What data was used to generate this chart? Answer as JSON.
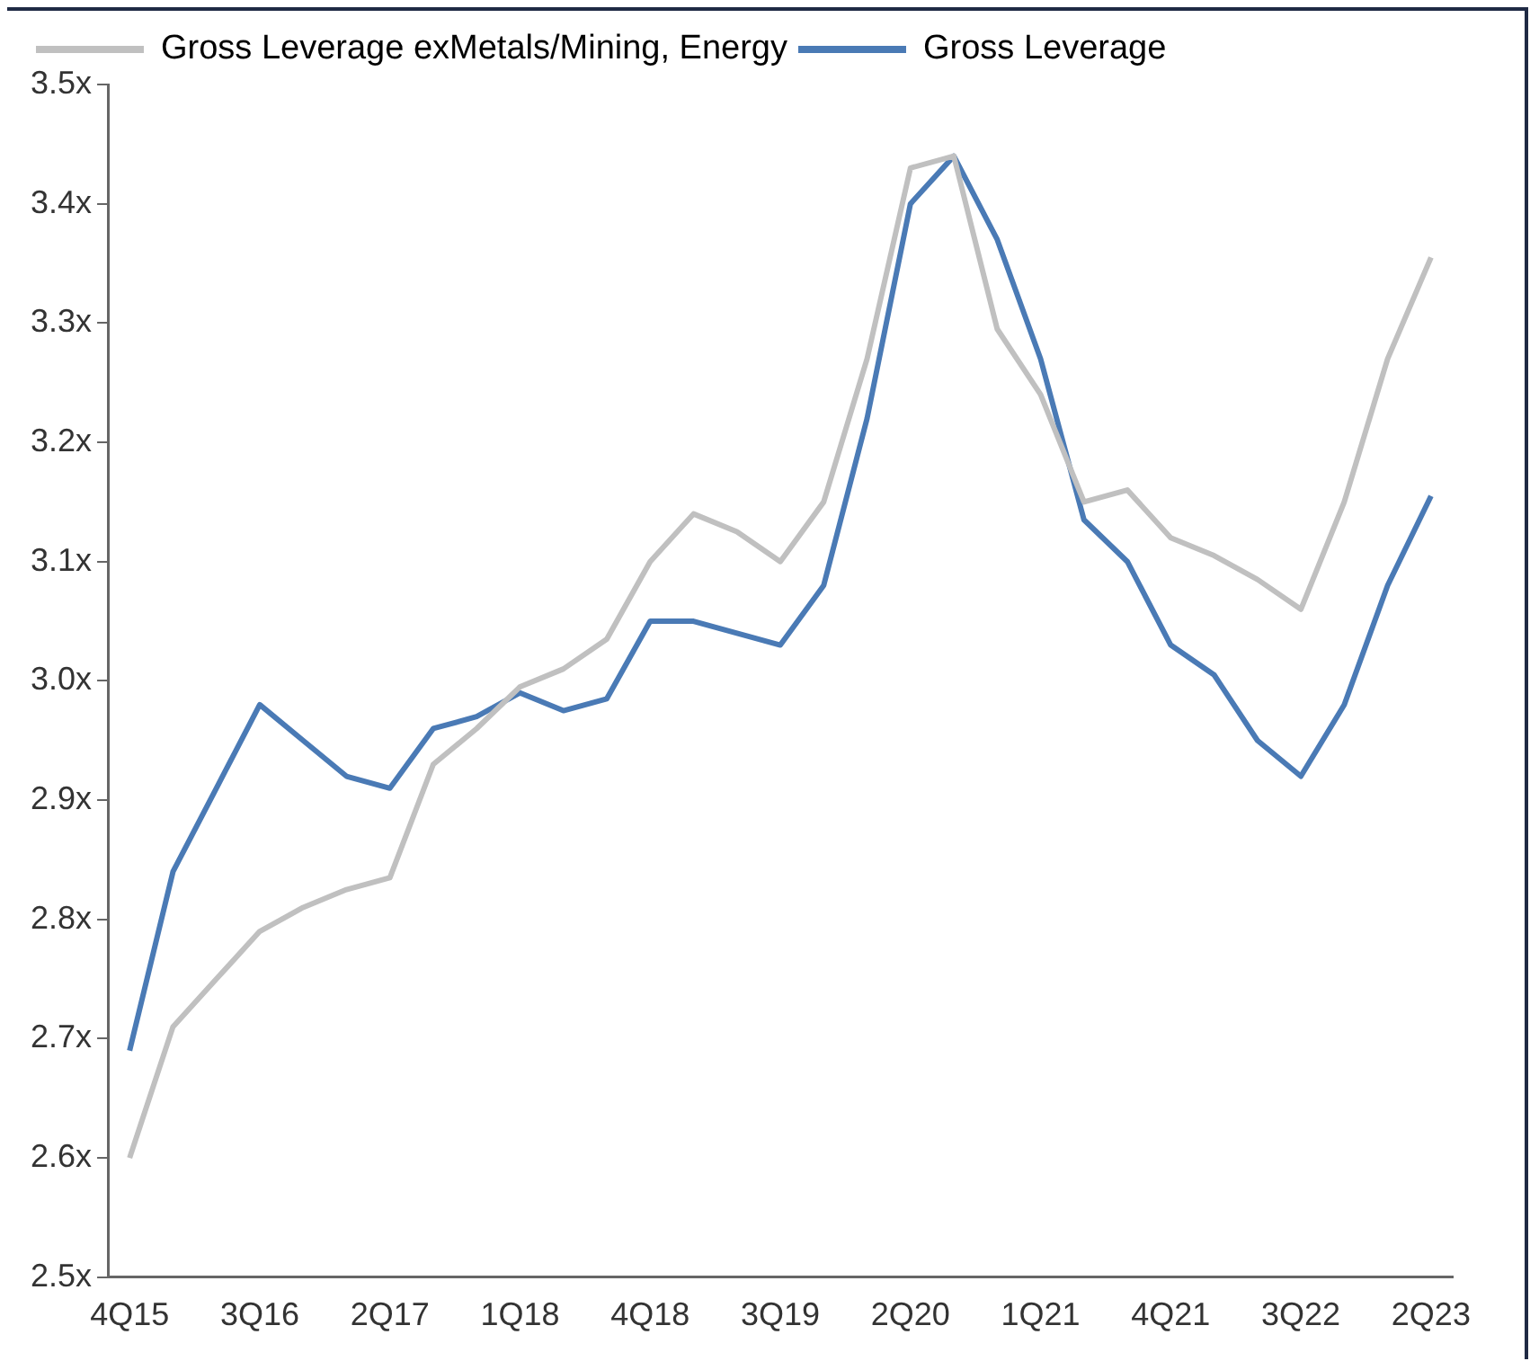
{
  "chart_data": {
    "type": "line",
    "categories": [
      "4Q15",
      null,
      null,
      "3Q16",
      null,
      null,
      "2Q17",
      null,
      null,
      "1Q18",
      null,
      null,
      "4Q18",
      null,
      null,
      "3Q19",
      null,
      null,
      "2Q20",
      null,
      null,
      "1Q21",
      null,
      null,
      "4Q21",
      null,
      null,
      "3Q22",
      null,
      null,
      "2Q23"
    ],
    "series": [
      {
        "name": "Gross Leverage exMetals/Mining, Energy",
        "color": "#c0c0c0",
        "values": [
          2.6,
          2.71,
          2.75,
          2.79,
          2.81,
          2.825,
          2.835,
          2.93,
          2.96,
          2.995,
          3.01,
          3.035,
          3.1,
          3.14,
          3.125,
          3.1,
          3.15,
          3.27,
          3.43,
          3.44,
          3.295,
          3.24,
          3.15,
          3.16,
          3.12,
          3.105,
          3.085,
          3.06,
          3.15,
          3.27,
          3.355
        ]
      },
      {
        "name": "Gross Leverage",
        "color": "#4a7ab5",
        "values": [
          2.69,
          2.84,
          2.91,
          2.98,
          2.95,
          2.92,
          2.91,
          2.96,
          2.97,
          2.99,
          2.975,
          2.985,
          3.05,
          3.05,
          3.04,
          3.03,
          3.08,
          3.22,
          3.4,
          3.44,
          3.37,
          3.27,
          3.135,
          3.1,
          3.03,
          3.005,
          2.95,
          2.92,
          2.98,
          3.08,
          3.155
        ]
      }
    ],
    "ylim": [
      2.5,
      3.5
    ],
    "yticks": [
      {
        "value": 2.5,
        "label": "2.5x"
      },
      {
        "value": 2.6,
        "label": "2.6x"
      },
      {
        "value": 2.7,
        "label": "2.7x"
      },
      {
        "value": 2.8,
        "label": "2.8x"
      },
      {
        "value": 2.9,
        "label": "2.9x"
      },
      {
        "value": 3.0,
        "label": "3.0x"
      },
      {
        "value": 3.1,
        "label": "3.1x"
      },
      {
        "value": 3.2,
        "label": "3.2x"
      },
      {
        "value": 3.3,
        "label": "3.3x"
      },
      {
        "value": 3.4,
        "label": "3.4x"
      },
      {
        "value": 3.5,
        "label": "3.5x"
      }
    ],
    "grid": false,
    "legend": "top left",
    "marker": "none",
    "line_style": "solid"
  }
}
